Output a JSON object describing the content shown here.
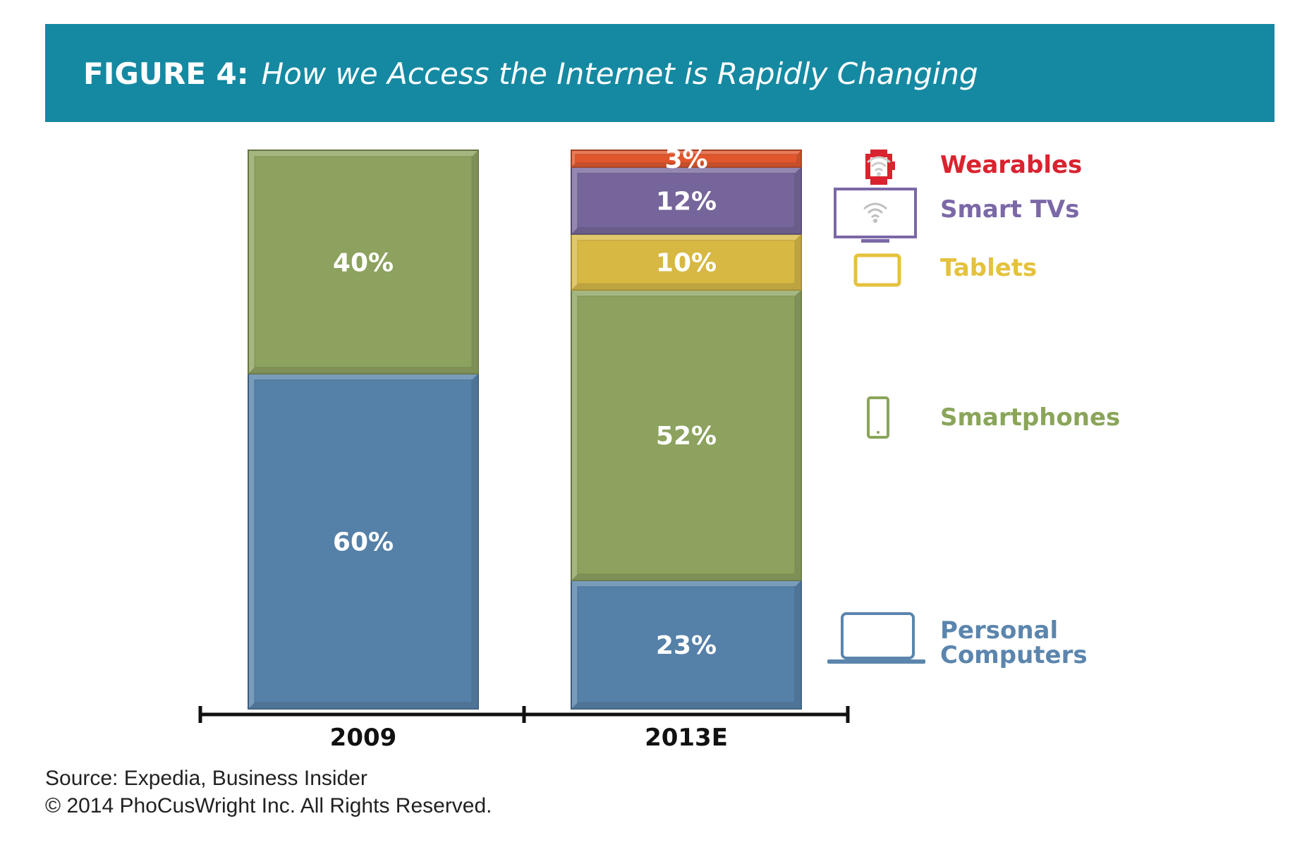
{
  "header": {
    "figure_label": "FIGURE 4:",
    "title": "How we Access the Internet is Rapidly Changing"
  },
  "chart_data": {
    "type": "bar",
    "stacked": true,
    "categories": [
      "2009",
      "2013E"
    ],
    "ylim": [
      0,
      100
    ],
    "series": [
      {
        "name": "Personal Computers",
        "values": [
          60,
          23
        ],
        "labels": [
          "60%",
          "23%"
        ],
        "color": "#5580a8",
        "icon": "laptop-icon"
      },
      {
        "name": "Smartphones",
        "values": [
          40,
          52
        ],
        "labels": [
          "40%",
          "52%"
        ],
        "color": "#8ca25e",
        "icon": "smartphone-icon"
      },
      {
        "name": "Tablets",
        "values": [
          0,
          10
        ],
        "labels": [
          "",
          "10%"
        ],
        "color": "#d7b843",
        "icon": "tablet-icon"
      },
      {
        "name": "Smart TVs",
        "values": [
          0,
          12
        ],
        "labels": [
          "",
          "12%"
        ],
        "color": "#76659a",
        "icon": "smart-tv-icon"
      },
      {
        "name": "Wearables",
        "values": [
          0,
          3
        ],
        "labels": [
          "",
          "3%"
        ],
        "color": "#e1562c",
        "icon": "wearable-watch-icon"
      }
    ],
    "legend": {
      "placement": "right",
      "entries": [
        {
          "name": "Wearables",
          "text": "Wearables",
          "color": "#d9232e",
          "icon": "wearable-watch-icon"
        },
        {
          "name": "Smart TVs",
          "text": "Smart TVs",
          "color": "#7b68a6",
          "icon": "smart-tv-icon"
        },
        {
          "name": "Tablets",
          "text": "Tablets",
          "color": "#e5c23d",
          "icon": "tablet-icon"
        },
        {
          "name": "Smartphones",
          "text": "Smartphones",
          "color": "#8aa55a",
          "icon": "smartphone-icon"
        },
        {
          "name": "Personal Computers",
          "text": [
            "Personal",
            "Computers"
          ],
          "color": "#5b85ad",
          "icon": "laptop-icon"
        }
      ]
    },
    "grid": false
  },
  "footer": {
    "source": "Source: Expedia, Business Insider",
    "copyright": "© 2014 PhoCusWright Inc. All Rights Reserved."
  }
}
